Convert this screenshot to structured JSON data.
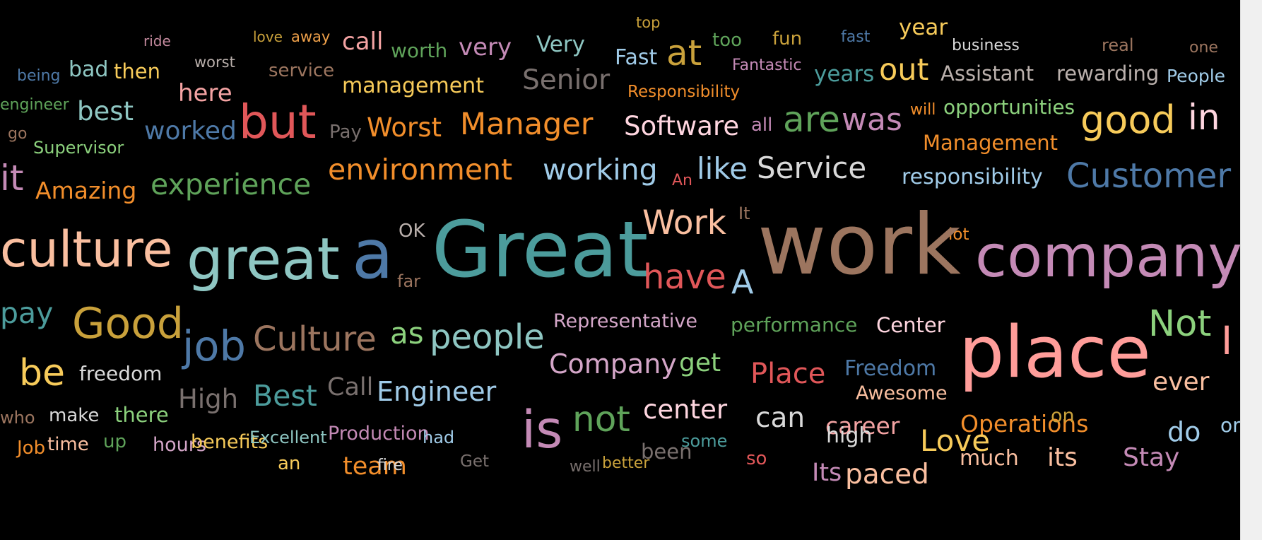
{
  "words": [
    {
      "text": "top",
      "color": "#c9a13b"
    },
    {
      "text": "ride",
      "color": "#c48a9e"
    },
    {
      "text": "love",
      "color": "#c9a13b"
    },
    {
      "text": "away",
      "color": "#f0a14a"
    },
    {
      "text": "call",
      "color": "#f4a3a3"
    },
    {
      "text": "worth",
      "color": "#5fa35a"
    },
    {
      "text": "very",
      "color": "#c48ab6"
    },
    {
      "text": "Very",
      "color": "#8ec6c2"
    },
    {
      "text": "at",
      "color": "#c9a13b"
    },
    {
      "text": "too",
      "color": "#5fa35a"
    },
    {
      "text": "fun",
      "color": "#c9a13b"
    },
    {
      "text": "fast",
      "color": "#4e79a7"
    },
    {
      "text": "year",
      "color": "#f7cb5a"
    },
    {
      "text": "business",
      "color": "#d9d9d9"
    },
    {
      "text": "real",
      "color": "#9c755f"
    },
    {
      "text": "one",
      "color": "#9c755f"
    },
    {
      "text": "being",
      "color": "#4e79a7"
    },
    {
      "text": "bad",
      "color": "#8ec6c2"
    },
    {
      "text": "then",
      "color": "#f7cb5a"
    },
    {
      "text": "worst",
      "color": "#bab0ac"
    },
    {
      "text": "service",
      "color": "#9c755f"
    },
    {
      "text": "management",
      "color": "#f7cb5a"
    },
    {
      "text": "Senior",
      "color": "#79706e"
    },
    {
      "text": "Fast",
      "color": "#a0cbe8"
    },
    {
      "text": "Fantastic",
      "color": "#c48ab6"
    },
    {
      "text": "years",
      "color": "#4c9c9c"
    },
    {
      "text": "out",
      "color": "#f7cb5a"
    },
    {
      "text": "Assistant",
      "color": "#bab0ac"
    },
    {
      "text": "rewarding",
      "color": "#bab0ac"
    },
    {
      "text": "People",
      "color": "#a0cbe8"
    },
    {
      "text": "engineer",
      "color": "#5fa35a"
    },
    {
      "text": "here",
      "color": "#f4a3a3"
    },
    {
      "text": "best",
      "color": "#8ec6c2"
    },
    {
      "text": "but",
      "color": "#e15759"
    },
    {
      "text": "Responsibility",
      "color": "#f28e2b"
    },
    {
      "text": "will",
      "color": "#f28e2b"
    },
    {
      "text": "opportunities",
      "color": "#8cd17d"
    },
    {
      "text": "go",
      "color": "#9c755f"
    },
    {
      "text": "worked",
      "color": "#4e79a7"
    },
    {
      "text": "Pay",
      "color": "#79706e"
    },
    {
      "text": "Worst",
      "color": "#f28e2b"
    },
    {
      "text": "Manager",
      "color": "#f28e2b"
    },
    {
      "text": "Software",
      "color": "#ffd6e0"
    },
    {
      "text": "all",
      "color": "#c48ab6"
    },
    {
      "text": "are",
      "color": "#5fa35a"
    },
    {
      "text": "was",
      "color": "#c48ab6"
    },
    {
      "text": "good",
      "color": "#f7cb5a"
    },
    {
      "text": "in",
      "color": "#ffd6e0"
    },
    {
      "text": "Supervisor",
      "color": "#8cd17d"
    },
    {
      "text": "Management",
      "color": "#f28e2b"
    },
    {
      "text": "it",
      "color": "#c48ab6"
    },
    {
      "text": "Amazing",
      "color": "#f28e2b"
    },
    {
      "text": "experience",
      "color": "#5fa35a"
    },
    {
      "text": "environment",
      "color": "#f28e2b"
    },
    {
      "text": "working",
      "color": "#a0cbe8"
    },
    {
      "text": "An",
      "color": "#e15759"
    },
    {
      "text": "like",
      "color": "#a0cbe8"
    },
    {
      "text": "Service",
      "color": "#d9d9d9"
    },
    {
      "text": "responsibility",
      "color": "#a0cbe8"
    },
    {
      "text": "Customer",
      "color": "#4e79a7"
    },
    {
      "text": "Work",
      "color": "#fabfa0"
    },
    {
      "text": "It",
      "color": "#9c755f"
    },
    {
      "text": "OK",
      "color": "#bab0ac"
    },
    {
      "text": "lot",
      "color": "#f28e2b"
    },
    {
      "text": "culture",
      "color": "#fabfa0"
    },
    {
      "text": "great",
      "color": "#8ec6c2"
    },
    {
      "text": "a",
      "color": "#4e79a7"
    },
    {
      "text": "Great",
      "color": "#4c9c9c"
    },
    {
      "text": "have",
      "color": "#e15759"
    },
    {
      "text": "A",
      "color": "#a0cbe8"
    },
    {
      "text": "work",
      "color": "#9c755f"
    },
    {
      "text": "company",
      "color": "#c48ab6"
    },
    {
      "text": "far",
      "color": "#9c755f"
    },
    {
      "text": "pay",
      "color": "#4c9c9c"
    },
    {
      "text": "Good",
      "color": "#c9a13b"
    },
    {
      "text": "job",
      "color": "#4e79a7"
    },
    {
      "text": "Culture",
      "color": "#9c755f"
    },
    {
      "text": "as",
      "color": "#8cd17d"
    },
    {
      "text": "people",
      "color": "#8ec6c2"
    },
    {
      "text": "Representative",
      "color": "#d4a6c8"
    },
    {
      "text": "performance",
      "color": "#5fa35a"
    },
    {
      "text": "Center",
      "color": "#ffd6e0"
    },
    {
      "text": "place",
      "color": "#ff9d9a"
    },
    {
      "text": "Not",
      "color": "#8cd17d"
    },
    {
      "text": "I",
      "color": "#ff9d9a"
    },
    {
      "text": "be",
      "color": "#f7cb5a"
    },
    {
      "text": "freedom",
      "color": "#d9d9d9"
    },
    {
      "text": "Company",
      "color": "#d4a6c8"
    },
    {
      "text": "get",
      "color": "#8cd17d"
    },
    {
      "text": "Place",
      "color": "#e15759"
    },
    {
      "text": "Freedom",
      "color": "#4e79a7"
    },
    {
      "text": "ever",
      "color": "#fabfa0"
    },
    {
      "text": "Best",
      "color": "#4c9c9c"
    },
    {
      "text": "High",
      "color": "#79706e"
    },
    {
      "text": "Call",
      "color": "#79706e"
    },
    {
      "text": "Engineer",
      "color": "#a0cbe8"
    },
    {
      "text": "Awesome",
      "color": "#fabfa0"
    },
    {
      "text": "who",
      "color": "#9c755f"
    },
    {
      "text": "make",
      "color": "#d9d9d9"
    },
    {
      "text": "there",
      "color": "#8cd17d"
    },
    {
      "text": "is",
      "color": "#c48ab6"
    },
    {
      "text": "not",
      "color": "#5fa35a"
    },
    {
      "text": "center",
      "color": "#ffd6e0"
    },
    {
      "text": "can",
      "color": "#d9d9d9"
    },
    {
      "text": "career",
      "color": "#f4a3a3"
    },
    {
      "text": "Operations",
      "color": "#f28e2b"
    },
    {
      "text": "on",
      "color": "#c9a13b"
    },
    {
      "text": "do",
      "color": "#a0cbe8"
    },
    {
      "text": "or",
      "color": "#a0cbe8"
    },
    {
      "text": "Job",
      "color": "#f28e2b"
    },
    {
      "text": "time",
      "color": "#fabfa0"
    },
    {
      "text": "up",
      "color": "#5fa35a"
    },
    {
      "text": "hours",
      "color": "#d4a6c8"
    },
    {
      "text": "benefits",
      "color": "#f7cb5a"
    },
    {
      "text": "Excellent",
      "color": "#8ec6c2"
    },
    {
      "text": "Production",
      "color": "#c48ab6"
    },
    {
      "text": "had",
      "color": "#a0cbe8"
    },
    {
      "text": "been",
      "color": "#79706e"
    },
    {
      "text": "some",
      "color": "#4c9c9c"
    },
    {
      "text": "high",
      "color": "#d9d9d9"
    },
    {
      "text": "Love",
      "color": "#f7cb5a"
    },
    {
      "text": "an",
      "color": "#f7cb5a"
    },
    {
      "text": "team",
      "color": "#f28e2b"
    },
    {
      "text": "fire",
      "color": "#d9d9d9"
    },
    {
      "text": "Get",
      "color": "#79706e"
    },
    {
      "text": "well",
      "color": "#79706e"
    },
    {
      "text": "better",
      "color": "#c9a13b"
    },
    {
      "text": "so",
      "color": "#e15759"
    },
    {
      "text": "Its",
      "color": "#c48ab6"
    },
    {
      "text": "paced",
      "color": "#fabfa0"
    },
    {
      "text": "much",
      "color": "#fabfa0"
    },
    {
      "text": "its",
      "color": "#fabfa0"
    },
    {
      "text": "Stay",
      "color": "#c48ab6"
    }
  ]
}
